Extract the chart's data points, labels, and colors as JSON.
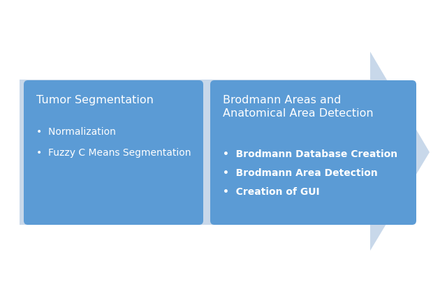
{
  "background_color": "#ffffff",
  "arrow_color": "#c8d8ea",
  "box_color": "#5b9bd5",
  "box_text_color": "#ffffff",
  "left_box": {
    "title": "Tumor Segmentation",
    "bullets": [
      "Normalization",
      "Fuzzy C Means Segmentation"
    ],
    "bold_bullets": false
  },
  "right_box": {
    "title": "Brodmann Areas and\nAnatomical Area Detection",
    "bullets": [
      "Brodmann Database Creation",
      "Brodmann Area Detection",
      "Creation of GUI"
    ],
    "bold_bullets": true
  },
  "title_fontsize": 11.5,
  "bullet_fontsize": 10,
  "figsize": [
    6.4,
    4.35
  ],
  "dpi": 100
}
